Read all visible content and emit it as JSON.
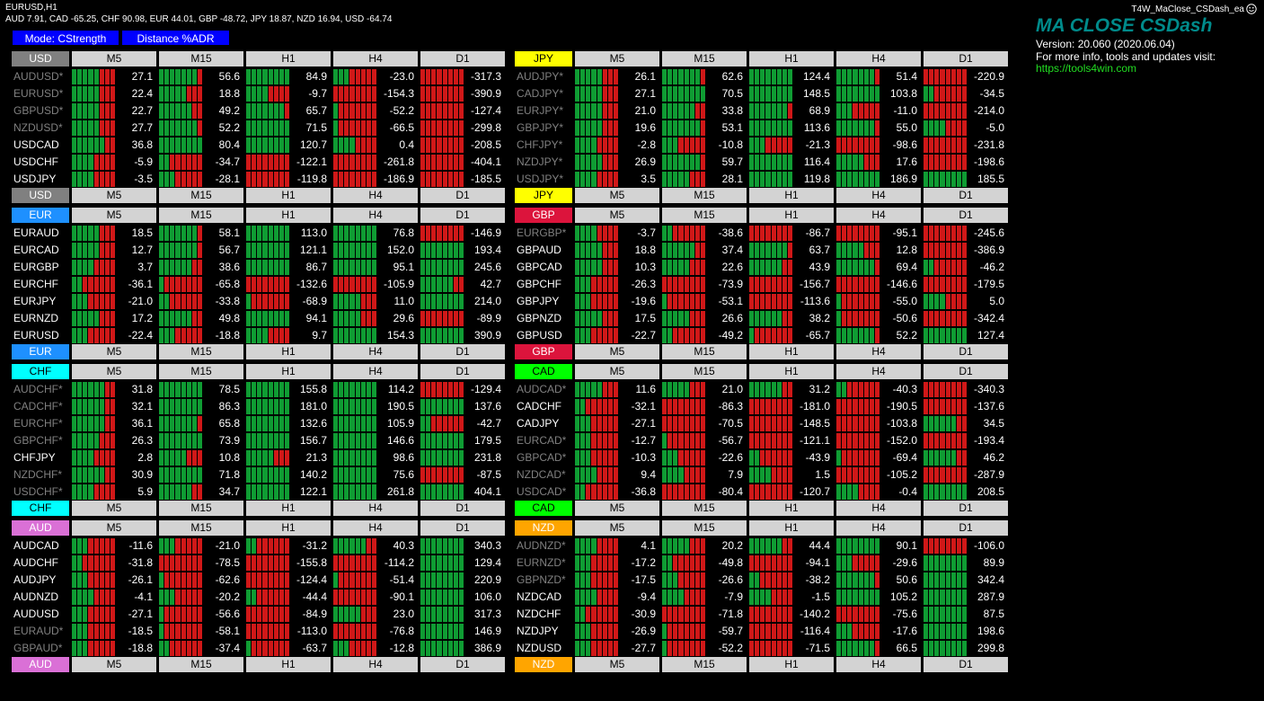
{
  "chart": {
    "title": "EURUSD,H1",
    "strength_line": "AUD 7.91, CAD -65.25, CHF 90.98, EUR 44.01, GBP -48.72, JPY 18.87, NZD 16.94, USD -64.74",
    "ea_name": "T4W_MaClose_CSDash_ea"
  },
  "buttons": {
    "mode": "Mode: CStrength",
    "distance": "Distance %ADR"
  },
  "info": {
    "brand": "MA CLOSE CSDash",
    "version": "Version: 20.060 (2020.06.04)",
    "more": "For more info, tools and updates visit:",
    "url": "https://tools4win.com"
  },
  "colors": {
    "bull": "#0f9c33",
    "bear": "#d01818",
    "header": "#d3d3d3",
    "button": "#0000ff"
  },
  "timeframes": [
    "M5",
    "M15",
    "H1",
    "H4",
    "D1"
  ],
  "panels": [
    {
      "currency": "USD",
      "color": "#808080",
      "text": "#ffffff",
      "rows": [
        {
          "pair": "AUDUSD*",
          "inv": true,
          "vals": [
            "27.1",
            "56.6",
            "84.9",
            "-23.0",
            "-317.3"
          ]
        },
        {
          "pair": "EURUSD*",
          "inv": true,
          "vals": [
            "22.4",
            "18.8",
            "-9.7",
            "-154.3",
            "-390.9"
          ]
        },
        {
          "pair": "GBPUSD*",
          "inv": true,
          "vals": [
            "22.7",
            "49.2",
            "65.7",
            "-52.2",
            "-127.4"
          ]
        },
        {
          "pair": "NZDUSD*",
          "inv": true,
          "vals": [
            "27.7",
            "52.2",
            "71.5",
            "-66.5",
            "-299.8"
          ]
        },
        {
          "pair": "USDCAD",
          "inv": false,
          "vals": [
            "36.8",
            "80.4",
            "120.7",
            "0.4",
            "-208.5"
          ]
        },
        {
          "pair": "USDCHF",
          "inv": false,
          "vals": [
            "-5.9",
            "-34.7",
            "-122.1",
            "-261.8",
            "-404.1"
          ]
        },
        {
          "pair": "USDJPY",
          "inv": false,
          "vals": [
            "-3.5",
            "-28.1",
            "-119.8",
            "-186.9",
            "-185.5"
          ]
        }
      ]
    },
    {
      "currency": "JPY",
      "color": "#ffff00",
      "text": "#000000",
      "rows": [
        {
          "pair": "AUDJPY*",
          "inv": true,
          "vals": [
            "26.1",
            "62.6",
            "124.4",
            "51.4",
            "-220.9"
          ]
        },
        {
          "pair": "CADJPY*",
          "inv": true,
          "vals": [
            "27.1",
            "70.5",
            "148.5",
            "103.8",
            "-34.5"
          ]
        },
        {
          "pair": "EURJPY*",
          "inv": true,
          "vals": [
            "21.0",
            "33.8",
            "68.9",
            "-11.0",
            "-214.0"
          ]
        },
        {
          "pair": "GBPJPY*",
          "inv": true,
          "vals": [
            "19.6",
            "53.1",
            "113.6",
            "55.0",
            "-5.0"
          ]
        },
        {
          "pair": "CHFJPY*",
          "inv": true,
          "vals": [
            "-2.8",
            "-10.8",
            "-21.3",
            "-98.6",
            "-231.8"
          ]
        },
        {
          "pair": "NZDJPY*",
          "inv": true,
          "vals": [
            "26.9",
            "59.7",
            "116.4",
            "17.6",
            "-198.6"
          ]
        },
        {
          "pair": "USDJPY*",
          "inv": true,
          "vals": [
            "3.5",
            "28.1",
            "119.8",
            "186.9",
            "185.5"
          ]
        }
      ]
    },
    {
      "currency": "EUR",
      "color": "#1e90ff",
      "text": "#ffffff",
      "rows": [
        {
          "pair": "EURAUD",
          "inv": false,
          "vals": [
            "18.5",
            "58.1",
            "113.0",
            "76.8",
            "-146.9"
          ]
        },
        {
          "pair": "EURCAD",
          "inv": false,
          "vals": [
            "12.7",
            "56.7",
            "121.1",
            "152.0",
            "193.4"
          ]
        },
        {
          "pair": "EURGBP",
          "inv": false,
          "vals": [
            "3.7",
            "38.6",
            "86.7",
            "95.1",
            "245.6"
          ]
        },
        {
          "pair": "EURCHF",
          "inv": false,
          "vals": [
            "-36.1",
            "-65.8",
            "-132.6",
            "-105.9",
            "42.7"
          ]
        },
        {
          "pair": "EURJPY",
          "inv": false,
          "vals": [
            "-21.0",
            "-33.8",
            "-68.9",
            "11.0",
            "214.0"
          ]
        },
        {
          "pair": "EURNZD",
          "inv": false,
          "vals": [
            "17.2",
            "49.8",
            "94.1",
            "29.6",
            "-89.9"
          ]
        },
        {
          "pair": "EURUSD",
          "inv": false,
          "vals": [
            "-22.4",
            "-18.8",
            "9.7",
            "154.3",
            "390.9"
          ]
        }
      ]
    },
    {
      "currency": "GBP",
      "color": "#dc143c",
      "text": "#ffffff",
      "rows": [
        {
          "pair": "EURGBP*",
          "inv": true,
          "vals": [
            "-3.7",
            "-38.6",
            "-86.7",
            "-95.1",
            "-245.6"
          ]
        },
        {
          "pair": "GBPAUD",
          "inv": false,
          "vals": [
            "18.8",
            "37.4",
            "63.7",
            "12.8",
            "-386.9"
          ]
        },
        {
          "pair": "GBPCAD",
          "inv": false,
          "vals": [
            "10.3",
            "22.6",
            "43.9",
            "69.4",
            "-46.2"
          ]
        },
        {
          "pair": "GBPCHF",
          "inv": false,
          "vals": [
            "-26.3",
            "-73.9",
            "-156.7",
            "-146.6",
            "-179.5"
          ]
        },
        {
          "pair": "GBPJPY",
          "inv": false,
          "vals": [
            "-19.6",
            "-53.1",
            "-113.6",
            "-55.0",
            "5.0"
          ]
        },
        {
          "pair": "GBPNZD",
          "inv": false,
          "vals": [
            "17.5",
            "26.6",
            "38.2",
            "-50.6",
            "-342.4"
          ]
        },
        {
          "pair": "GBPUSD",
          "inv": false,
          "vals": [
            "-22.7",
            "-49.2",
            "-65.7",
            "52.2",
            "127.4"
          ]
        }
      ]
    },
    {
      "currency": "CHF",
      "color": "#00ffff",
      "text": "#000000",
      "rows": [
        {
          "pair": "AUDCHF*",
          "inv": true,
          "vals": [
            "31.8",
            "78.5",
            "155.8",
            "114.2",
            "-129.4"
          ]
        },
        {
          "pair": "CADCHF*",
          "inv": true,
          "vals": [
            "32.1",
            "86.3",
            "181.0",
            "190.5",
            "137.6"
          ]
        },
        {
          "pair": "EURCHF*",
          "inv": true,
          "vals": [
            "36.1",
            "65.8",
            "132.6",
            "105.9",
            "-42.7"
          ]
        },
        {
          "pair": "GBPCHF*",
          "inv": true,
          "vals": [
            "26.3",
            "73.9",
            "156.7",
            "146.6",
            "179.5"
          ]
        },
        {
          "pair": "CHFJPY",
          "inv": false,
          "vals": [
            "2.8",
            "10.8",
            "21.3",
            "98.6",
            "231.8"
          ]
        },
        {
          "pair": "NZDCHF*",
          "inv": true,
          "vals": [
            "30.9",
            "71.8",
            "140.2",
            "75.6",
            "-87.5"
          ]
        },
        {
          "pair": "USDCHF*",
          "inv": true,
          "vals": [
            "5.9",
            "34.7",
            "122.1",
            "261.8",
            "404.1"
          ]
        }
      ]
    },
    {
      "currency": "CAD",
      "color": "#00ff00",
      "text": "#000000",
      "rows": [
        {
          "pair": "AUDCAD*",
          "inv": true,
          "vals": [
            "11.6",
            "21.0",
            "31.2",
            "-40.3",
            "-340.3"
          ]
        },
        {
          "pair": "CADCHF",
          "inv": false,
          "vals": [
            "-32.1",
            "-86.3",
            "-181.0",
            "-190.5",
            "-137.6"
          ]
        },
        {
          "pair": "CADJPY",
          "inv": false,
          "vals": [
            "-27.1",
            "-70.5",
            "-148.5",
            "-103.8",
            "34.5"
          ]
        },
        {
          "pair": "EURCAD*",
          "inv": true,
          "vals": [
            "-12.7",
            "-56.7",
            "-121.1",
            "-152.0",
            "-193.4"
          ]
        },
        {
          "pair": "GBPCAD*",
          "inv": true,
          "vals": [
            "-10.3",
            "-22.6",
            "-43.9",
            "-69.4",
            "46.2"
          ]
        },
        {
          "pair": "NZDCAD*",
          "inv": true,
          "vals": [
            "9.4",
            "7.9",
            "1.5",
            "-105.2",
            "-287.9"
          ]
        },
        {
          "pair": "USDCAD*",
          "inv": true,
          "vals": [
            "-36.8",
            "-80.4",
            "-120.7",
            "-0.4",
            "208.5"
          ]
        }
      ]
    },
    {
      "currency": "AUD",
      "color": "#da70d6",
      "text": "#ffffff",
      "rows": [
        {
          "pair": "AUDCAD",
          "inv": false,
          "vals": [
            "-11.6",
            "-21.0",
            "-31.2",
            "40.3",
            "340.3"
          ]
        },
        {
          "pair": "AUDCHF",
          "inv": false,
          "vals": [
            "-31.8",
            "-78.5",
            "-155.8",
            "-114.2",
            "129.4"
          ]
        },
        {
          "pair": "AUDJPY",
          "inv": false,
          "vals": [
            "-26.1",
            "-62.6",
            "-124.4",
            "-51.4",
            "220.9"
          ]
        },
        {
          "pair": "AUDNZD",
          "inv": false,
          "vals": [
            "-4.1",
            "-20.2",
            "-44.4",
            "-90.1",
            "106.0"
          ]
        },
        {
          "pair": "AUDUSD",
          "inv": false,
          "vals": [
            "-27.1",
            "-56.6",
            "-84.9",
            "23.0",
            "317.3"
          ]
        },
        {
          "pair": "EURAUD*",
          "inv": true,
          "vals": [
            "-18.5",
            "-58.1",
            "-113.0",
            "-76.8",
            "146.9"
          ]
        },
        {
          "pair": "GBPAUD*",
          "inv": true,
          "vals": [
            "-18.8",
            "-37.4",
            "-63.7",
            "-12.8",
            "386.9"
          ]
        }
      ]
    },
    {
      "currency": "NZD",
      "color": "#ffa500",
      "text": "#ffffff",
      "rows": [
        {
          "pair": "AUDNZD*",
          "inv": true,
          "vals": [
            "4.1",
            "20.2",
            "44.4",
            "90.1",
            "-106.0"
          ]
        },
        {
          "pair": "EURNZD*",
          "inv": true,
          "vals": [
            "-17.2",
            "-49.8",
            "-94.1",
            "-29.6",
            "89.9"
          ]
        },
        {
          "pair": "GBPNZD*",
          "inv": true,
          "vals": [
            "-17.5",
            "-26.6",
            "-38.2",
            "50.6",
            "342.4"
          ]
        },
        {
          "pair": "NZDCAD",
          "inv": false,
          "vals": [
            "-9.4",
            "-7.9",
            "-1.5",
            "105.2",
            "287.9"
          ]
        },
        {
          "pair": "NZDCHF",
          "inv": false,
          "vals": [
            "-30.9",
            "-71.8",
            "-140.2",
            "-75.6",
            "87.5"
          ]
        },
        {
          "pair": "NZDJPY",
          "inv": false,
          "vals": [
            "-26.9",
            "-59.7",
            "-116.4",
            "-17.6",
            "198.6"
          ]
        },
        {
          "pair": "NZDUSD",
          "inv": false,
          "vals": [
            "-27.7",
            "-52.2",
            "-71.5",
            "66.5",
            "299.8"
          ]
        }
      ]
    }
  ]
}
